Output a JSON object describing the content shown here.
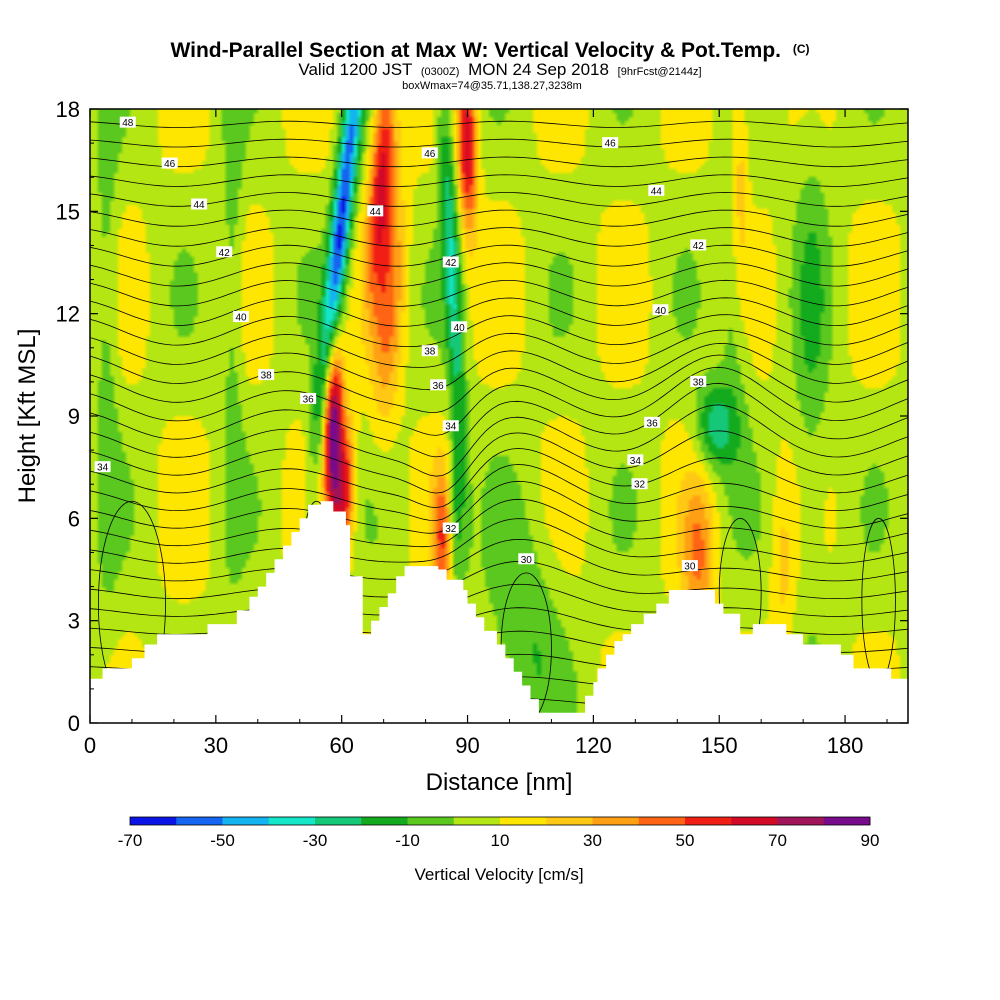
{
  "chart_data": {
    "type": "heatmap",
    "title": "Wind-Parallel Section at Max W: Vertical Velocity & Pot.Temp.",
    "title_mark": "(C)",
    "subtitle_parts": [
      "Valid 1200 JST",
      "(0300Z)",
      "MON 24 Sep 2018",
      "[9hrFcst@2144z]"
    ],
    "subtitle2": "boxWmax=74@35.71,138.27,3238m",
    "xlabel": "Distance [nm]",
    "ylabel": "Height [Kft MSL]",
    "xlim": [
      0,
      195
    ],
    "ylim": [
      0,
      18
    ],
    "xticks": [
      0,
      30,
      60,
      90,
      120,
      150,
      180
    ],
    "yticks": [
      0,
      3,
      6,
      9,
      12,
      15,
      18
    ],
    "colorbar": {
      "label": "Vertical Velocity [cm/s]",
      "tick_labels": [
        "-70",
        "-50",
        "-30",
        "-10",
        "10",
        "30",
        "50",
        "70",
        "90"
      ],
      "levels": [
        -70,
        -60,
        -50,
        -40,
        -30,
        -20,
        -10,
        0,
        10,
        20,
        30,
        40,
        50,
        60,
        70,
        80,
        90
      ],
      "colors": [
        "#0a14e6",
        "#1565f0",
        "#14b4f0",
        "#14e6c8",
        "#14c878",
        "#14aa1e",
        "#5ac81e",
        "#b4e614",
        "#ffe600",
        "#ffc814",
        "#ffa014",
        "#ff6414",
        "#f01e14",
        "#d20a28",
        "#a0145a",
        "#780a8c"
      ]
    },
    "velocity_features": [
      {
        "x": 58,
        "z": 8.5,
        "w": 80
      },
      {
        "x": 62,
        "z": 14.5,
        "w": -65
      },
      {
        "x": 58,
        "z": 11.5,
        "w": -30
      },
      {
        "x": 67,
        "z": 16.5,
        "w": 50
      },
      {
        "x": 84,
        "z": 14.0,
        "w": -30
      },
      {
        "x": 88,
        "z": 17.0,
        "w": 50
      },
      {
        "x": 84,
        "z": 5.5,
        "w": 40
      },
      {
        "x": 149,
        "z": 8.7,
        "w": -30
      },
      {
        "x": 146,
        "z": 4.8,
        "w": 30
      },
      {
        "x": 104,
        "z": 2.5,
        "w": -15
      }
    ],
    "theta_contour_labels": [
      {
        "value": "30",
        "x": 104,
        "z": 4.8
      },
      {
        "value": "30",
        "x": 143,
        "z": 4.6
      },
      {
        "value": "32",
        "x": 86,
        "z": 5.7
      },
      {
        "value": "32",
        "x": 131,
        "z": 7.0
      },
      {
        "value": "34",
        "x": 3,
        "z": 7.5
      },
      {
        "value": "34",
        "x": 86,
        "z": 8.7
      },
      {
        "value": "34",
        "x": 130,
        "z": 7.7
      },
      {
        "value": "36",
        "x": 52,
        "z": 9.5
      },
      {
        "value": "36",
        "x": 83,
        "z": 9.9
      },
      {
        "value": "36",
        "x": 134,
        "z": 8.8
      },
      {
        "value": "38",
        "x": 42,
        "z": 10.2
      },
      {
        "value": "38",
        "x": 81,
        "z": 10.9
      },
      {
        "value": "38",
        "x": 145,
        "z": 10.0
      },
      {
        "value": "40",
        "x": 36,
        "z": 11.9
      },
      {
        "value": "40",
        "x": 88,
        "z": 11.6
      },
      {
        "value": "40",
        "x": 136,
        "z": 12.1
      },
      {
        "value": "42",
        "x": 32,
        "z": 13.8
      },
      {
        "value": "42",
        "x": 86,
        "z": 13.5
      },
      {
        "value": "42",
        "x": 145,
        "z": 14.0
      },
      {
        "value": "44",
        "x": 26,
        "z": 15.2
      },
      {
        "value": "44",
        "x": 68,
        "z": 15.0
      },
      {
        "value": "44",
        "x": 135,
        "z": 15.6
      },
      {
        "value": "46",
        "x": 19,
        "z": 16.4
      },
      {
        "value": "46",
        "x": 81,
        "z": 16.7
      },
      {
        "value": "46",
        "x": 124,
        "z": 17.0
      },
      {
        "value": "48",
        "x": 9,
        "z": 17.6
      }
    ],
    "terrain_kft": [
      [
        0,
        1.3
      ],
      [
        3,
        1.6
      ],
      [
        10,
        1.9
      ],
      [
        13,
        2.3
      ],
      [
        16,
        2.6
      ],
      [
        28,
        2.9
      ],
      [
        35,
        3.3
      ],
      [
        38,
        3.7
      ],
      [
        40,
        4.0
      ],
      [
        42,
        4.4
      ],
      [
        44,
        4.8
      ],
      [
        46,
        5.2
      ],
      [
        48,
        5.6
      ],
      [
        50,
        6.0
      ],
      [
        52,
        6.4
      ],
      [
        55,
        6.5
      ],
      [
        58,
        6.2
      ],
      [
        61,
        5.8
      ],
      [
        62,
        4.3
      ],
      [
        65,
        2.6
      ],
      [
        67,
        3.0
      ],
      [
        69,
        3.4
      ],
      [
        71,
        3.8
      ],
      [
        73,
        4.3
      ],
      [
        75,
        4.6
      ],
      [
        83,
        4.5
      ],
      [
        85,
        4.2
      ],
      [
        89,
        3.9
      ],
      [
        90,
        3.5
      ],
      [
        92,
        3.1
      ],
      [
        94,
        2.7
      ],
      [
        97,
        2.3
      ],
      [
        99,
        1.9
      ],
      [
        101,
        1.5
      ],
      [
        103,
        1.1
      ],
      [
        105,
        0.7
      ],
      [
        107,
        0.3
      ],
      [
        116,
        0.3
      ],
      [
        118,
        0.8
      ],
      [
        120,
        1.2
      ],
      [
        121,
        1.6
      ],
      [
        123,
        2.0
      ],
      [
        125,
        2.4
      ],
      [
        127,
        2.6
      ],
      [
        129,
        2.9
      ],
      [
        132,
        3.2
      ],
      [
        135,
        3.5
      ],
      [
        138,
        3.9
      ],
      [
        147,
        3.9
      ],
      [
        149,
        3.5
      ],
      [
        151,
        3.2
      ],
      [
        155,
        2.6
      ],
      [
        158,
        2.9
      ],
      [
        163,
        2.9
      ],
      [
        166,
        2.6
      ],
      [
        170,
        2.3
      ],
      [
        176,
        2.3
      ],
      [
        179,
        2.0
      ],
      [
        182,
        1.6
      ],
      [
        188,
        1.6
      ],
      [
        191,
        1.3
      ],
      [
        195,
        1.3
      ]
    ]
  }
}
